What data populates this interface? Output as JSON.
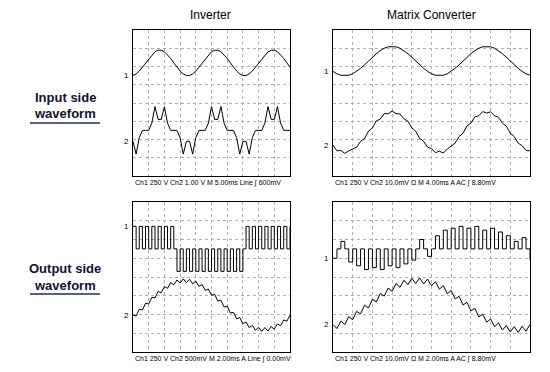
{
  "column_titles": [
    "Inverter",
    "Matrix Converter"
  ],
  "row_titles": [
    [
      "Input side",
      "waveform"
    ],
    [
      "Output side",
      "waveform"
    ]
  ],
  "chart_data": [
    {
      "type": "line",
      "footer": "Ch1 250 V Ch2 1.00 V M 5.00ms Line ∫ 600mV",
      "x": [
        0,
        0.2,
        0.4,
        0.6,
        0.8,
        1,
        1.2,
        1.4,
        1.6,
        1.8,
        2,
        2.2,
        2.4,
        2.6,
        2.8,
        3,
        3.2,
        3.4,
        3.6,
        3.8,
        4,
        4.2,
        4.4,
        4.6,
        4.8,
        5,
        5.2,
        5.4,
        5.6,
        5.8,
        6,
        6.2,
        6.4,
        6.6,
        6.8,
        7,
        7.2,
        7.4,
        7.6,
        7.8,
        8,
        8.2,
        8.4,
        8.6,
        8.8,
        9,
        9.2,
        9.4,
        9.6,
        9.8,
        10
      ],
      "xlim": [
        0,
        10
      ],
      "ylim": [
        -4,
        4
      ],
      "xticks": [
        0,
        1,
        2,
        3,
        4,
        5,
        6,
        7,
        8,
        9,
        10
      ],
      "yticks": [
        -4,
        -3,
        -2,
        -1,
        0,
        1,
        2,
        3,
        4
      ],
      "grid": true,
      "tick_labels": false,
      "series": [
        {
          "name": "1",
          "color": "#000000",
          "line_style": "solid",
          "values": [
            1.51,
            1.59,
            1.75,
            1.96,
            2.2,
            2.44,
            2.65,
            2.81,
            2.89,
            2.89,
            2.81,
            2.65,
            2.44,
            2.2,
            1.96,
            1.75,
            1.59,
            1.51,
            1.51,
            1.59,
            1.75,
            1.96,
            2.2,
            2.44,
            2.65,
            2.81,
            2.89,
            2.89,
            2.81,
            2.65,
            2.44,
            2.2,
            1.96,
            1.75,
            1.59,
            1.51,
            1.51,
            1.59,
            1.75,
            1.96,
            2.2,
            2.44,
            2.65,
            2.81,
            2.89,
            2.89,
            2.81,
            2.65,
            2.44,
            2.2,
            1.96
          ]
        },
        {
          "name": "2",
          "color": "#000000",
          "line_style": "solid",
          "values": [
            -2.1,
            -2.8,
            -1.9,
            -1.5,
            -1.5,
            -1.5,
            -1.1,
            -0.2,
            -0.9,
            -0.9,
            -0.2,
            -1.1,
            -1.5,
            -1.5,
            -1.5,
            -1.9,
            -2.8,
            -2.1,
            -2.1,
            -2.8,
            -1.9,
            -1.5,
            -1.5,
            -1.5,
            -1.1,
            -0.2,
            -0.9,
            -0.9,
            -0.2,
            -1.1,
            -1.5,
            -1.5,
            -1.5,
            -1.9,
            -2.8,
            -2.1,
            -2.1,
            -2.8,
            -1.9,
            -1.5,
            -1.5,
            -1.5,
            -1.1,
            -0.2,
            -0.9,
            -0.9,
            -0.2,
            -1.1,
            -1.5,
            -1.5,
            -1.5
          ]
        }
      ]
    },
    {
      "type": "line",
      "footer": "Ch1 250 V Ch2 10.0mV Ω M 4.00ms A AC ∫ 8.80mV",
      "x": [
        0,
        0.2,
        0.4,
        0.6,
        0.8,
        1,
        1.2,
        1.4,
        1.6,
        1.8,
        2,
        2.2,
        2.4,
        2.6,
        2.8,
        3,
        3.2,
        3.4,
        3.6,
        3.8,
        4,
        4.2,
        4.4,
        4.6,
        4.8,
        5,
        5.2,
        5.4,
        5.6,
        5.8,
        6,
        6.2,
        6.4,
        6.6,
        6.8,
        7,
        7.2,
        7.4,
        7.6,
        7.8,
        8,
        8.2,
        8.4,
        8.6,
        8.8,
        9,
        9.2,
        9.4,
        9.6,
        9.8,
        10
      ],
      "xlim": [
        0,
        10
      ],
      "ylim": [
        -4,
        4
      ],
      "xticks": [
        0,
        1,
        2,
        3,
        4,
        5,
        6,
        7,
        8,
        9,
        10
      ],
      "yticks": [
        -4,
        -3,
        -2,
        -1,
        0,
        1,
        2,
        3,
        4
      ],
      "grid": true,
      "tick_labels": false,
      "series": [
        {
          "name": "1",
          "color": "#000000",
          "line_style": "solid",
          "values": [
            1.73,
            1.6,
            1.52,
            1.5,
            1.52,
            1.6,
            1.73,
            1.9,
            2.09,
            2.3,
            2.51,
            2.7,
            2.87,
            3.0,
            3.08,
            3.1,
            3.08,
            3.0,
            2.87,
            2.7,
            2.51,
            2.3,
            2.09,
            1.9,
            1.73,
            1.6,
            1.52,
            1.5,
            1.52,
            1.6,
            1.73,
            1.9,
            2.09,
            2.3,
            2.51,
            2.7,
            2.87,
            3.0,
            3.08,
            3.1,
            3.08,
            3.0,
            2.87,
            2.7,
            2.51,
            2.3,
            2.09,
            1.9,
            1.73,
            1.6,
            1.52
          ]
        },
        {
          "name": "2",
          "color": "#000000",
          "line_style": "solid",
          "values": [
            -2.32,
            -2.62,
            -2.6,
            -2.76,
            -2.62,
            -2.5,
            -2.42,
            -2.1,
            -1.95,
            -1.55,
            -1.37,
            -0.98,
            -0.88,
            -0.58,
            -0.6,
            -0.44,
            -0.58,
            -0.6,
            -0.86,
            -1.0,
            -1.36,
            -1.55,
            -1.94,
            -2.1,
            -2.42,
            -2.5,
            -2.72,
            -2.64,
            -2.74,
            -2.52,
            -2.34,
            -2.2,
            -1.84,
            -1.65,
            -1.26,
            -1.1,
            -0.76,
            -0.7,
            -0.47,
            -0.55,
            -0.48,
            -0.7,
            -0.78,
            -1.1,
            -1.27,
            -1.66,
            -1.84,
            -2.2,
            -2.34,
            -2.6,
            -2.62
          ]
        }
      ]
    },
    {
      "type": "line",
      "footer": "Ch1 250 V Ch2 500mV M 2.00ms A Line ∫ 0.00mV",
      "x": [
        0,
        0.2,
        0.4,
        0.6,
        0.8,
        1,
        1.2,
        1.4,
        1.6,
        1.8,
        2,
        2.2,
        2.4,
        2.6,
        2.8,
        3,
        3.2,
        3.4,
        3.6,
        3.8,
        4,
        4.2,
        4.4,
        4.6,
        4.8,
        5,
        5.2,
        5.4,
        5.6,
        5.8,
        6,
        6.2,
        6.4,
        6.6,
        6.8,
        7,
        7.2,
        7.4,
        7.6,
        7.8,
        8,
        8.2,
        8.4,
        8.6,
        8.8,
        9,
        9.2,
        9.4,
        9.6,
        9.8,
        10
      ],
      "xlim": [
        0,
        10
      ],
      "ylim": [
        -4,
        4
      ],
      "xticks": [
        0,
        1,
        2,
        3,
        4,
        5,
        6,
        7,
        8,
        9,
        10
      ],
      "yticks": [
        -4,
        -3,
        -2,
        -1,
        0,
        1,
        2,
        3,
        4
      ],
      "grid": true,
      "tick_labels": false,
      "series": [
        {
          "name": "1",
          "color": "#000000",
          "line_style": "step",
          "values": [
            2.7,
            1.5,
            2.7,
            1.5,
            2.7,
            1.5,
            2.7,
            1.5,
            2.7,
            1.5,
            2.7,
            1.5,
            2.7,
            1.5,
            0.3,
            1.5,
            0.3,
            1.5,
            0.3,
            1.5,
            0.3,
            1.5,
            0.3,
            1.5,
            0.3,
            1.5,
            0.3,
            1.5,
            0.3,
            1.5,
            0.3,
            1.5,
            0.3,
            1.5,
            0.3,
            1.5,
            2.7,
            1.5,
            2.7,
            1.5,
            2.7,
            1.5,
            2.7,
            1.5,
            2.7,
            1.5,
            2.7,
            1.5,
            2.7,
            1.5,
            2.7
          ]
        },
        {
          "name": "2",
          "color": "#000000",
          "line_style": "solid",
          "values": [
            -2.03,
            -2.08,
            -1.72,
            -1.76,
            -1.4,
            -1.44,
            -1.08,
            -1.12,
            -0.77,
            -0.84,
            -0.51,
            -0.6,
            -0.3,
            -0.42,
            -0.16,
            -0.32,
            -0.1,
            -0.3,
            -0.12,
            -0.36,
            -0.22,
            -0.5,
            -0.4,
            -0.71,
            -0.64,
            -0.97,
            -0.92,
            -1.28,
            -1.24,
            -1.6,
            -1.56,
            -1.92,
            -1.88,
            -2.23,
            -2.16,
            -2.49,
            -2.4,
            -2.7,
            -2.58,
            -2.84,
            -2.68,
            -2.9,
            -2.7,
            -2.88,
            -2.64,
            -2.78,
            -2.5,
            -2.6,
            -2.29,
            -2.36,
            -2.03
          ]
        }
      ]
    },
    {
      "type": "line",
      "footer": "Ch1 250 V Ch2 10.0mV Ω M 2.00ms A AC ∫ 8.80mV",
      "x": [
        0,
        0.2,
        0.4,
        0.6,
        0.8,
        1,
        1.2,
        1.4,
        1.6,
        1.8,
        2,
        2.2,
        2.4,
        2.6,
        2.8,
        3,
        3.2,
        3.4,
        3.6,
        3.8,
        4,
        4.2,
        4.4,
        4.6,
        4.8,
        5,
        5.2,
        5.4,
        5.6,
        5.8,
        6,
        6.2,
        6.4,
        6.6,
        6.8,
        7,
        7.2,
        7.4,
        7.6,
        7.8,
        8,
        8.2,
        8.4,
        8.6,
        8.8,
        9,
        9.2,
        9.4,
        9.6,
        9.8,
        10
      ],
      "xlim": [
        0,
        10
      ],
      "ylim": [
        -4,
        4
      ],
      "xticks": [
        0,
        1,
        2,
        3,
        4,
        5,
        6,
        7,
        8,
        9,
        10
      ],
      "yticks": [
        -4,
        -3,
        -2,
        -1,
        0,
        1,
        2,
        3,
        4
      ],
      "grid": true,
      "tick_labels": false,
      "series": [
        {
          "name": "1",
          "color": "#000000",
          "line_style": "step",
          "values": [
            1.0,
            1.5,
            1.9,
            1.5,
            0.8,
            1.5,
            0.6,
            1.5,
            0.4,
            1.5,
            0.5,
            1.5,
            0.4,
            1.5,
            0.6,
            1.5,
            0.5,
            1.5,
            0.7,
            1.5,
            0.9,
            1.5,
            2.0,
            1.5,
            1.1,
            1.5,
            2.2,
            1.5,
            2.5,
            1.5,
            2.6,
            1.5,
            2.7,
            1.5,
            2.6,
            1.5,
            2.7,
            1.5,
            2.5,
            1.5,
            2.6,
            1.5,
            2.4,
            1.5,
            2.2,
            1.5,
            1.9,
            1.5,
            2.1,
            1.5,
            0.9
          ]
        },
        {
          "name": "2",
          "color": "#000000",
          "line_style": "solid",
          "values": [
            -2.53,
            -2.75,
            -2.35,
            -2.54,
            -2.11,
            -2.28,
            -1.83,
            -1.97,
            -1.51,
            -1.65,
            -1.19,
            -1.33,
            -0.87,
            -1.02,
            -0.59,
            -0.76,
            -0.35,
            -0.55,
            -0.17,
            -0.41,
            -0.07,
            -0.35,
            -0.05,
            -0.37,
            -0.11,
            -0.47,
            -0.25,
            -0.65,
            -0.46,
            -0.89,
            -0.72,
            -1.17,
            -1.03,
            -1.49,
            -1.35,
            -1.81,
            -1.67,
            -2.13,
            -1.98,
            -2.41,
            -2.24,
            -2.65,
            -2.45,
            -2.83,
            -2.59,
            -2.93,
            -2.65,
            -2.95,
            -2.63,
            -2.89,
            -2.53
          ]
        }
      ]
    }
  ]
}
